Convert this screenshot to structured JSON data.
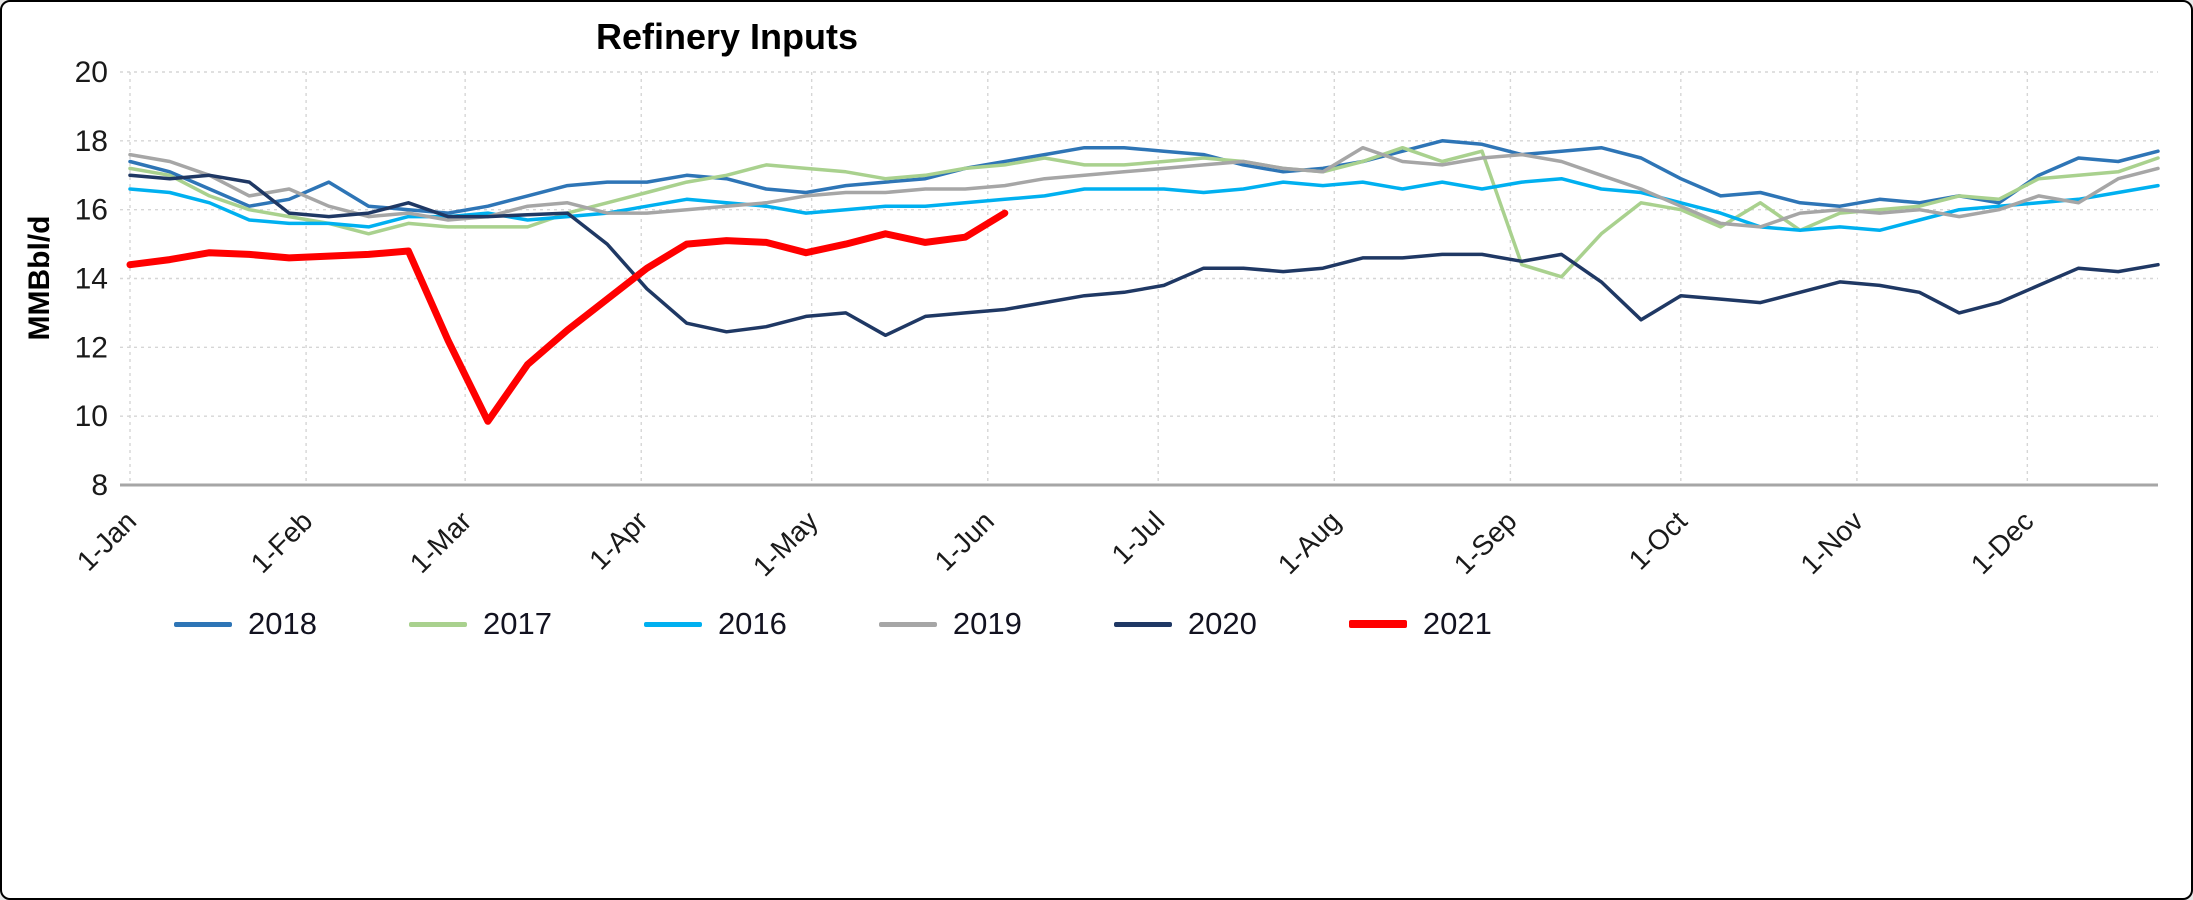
{
  "title": "Refinery Inputs",
  "chart_data": {
    "type": "line",
    "title": "Refinery Inputs",
    "xlabel": "",
    "ylabel": "MMBbl/d",
    "ylim": [
      8,
      20
    ],
    "ytick_step": 2,
    "grid": "dashed",
    "legend_position": "bottom",
    "x_unit": "weekly points, 7 days apart, starting 1-Jan",
    "x_domain_days": 357,
    "xticks": [
      {
        "label": "1-Jan",
        "day": 0
      },
      {
        "label": "1-Feb",
        "day": 31
      },
      {
        "label": "1-Mar",
        "day": 59
      },
      {
        "label": "1-Apr",
        "day": 90
      },
      {
        "label": "1-May",
        "day": 120
      },
      {
        "label": "1-Jun",
        "day": 151
      },
      {
        "label": "1-Jul",
        "day": 181
      },
      {
        "label": "1-Aug",
        "day": 212
      },
      {
        "label": "1-Sep",
        "day": 243
      },
      {
        "label": "1-Oct",
        "day": 273
      },
      {
        "label": "1-Nov",
        "day": 304
      },
      {
        "label": "1-Dec",
        "day": 334
      }
    ],
    "series": [
      {
        "name": "2018",
        "color": "#2E75B6",
        "width": 3.5,
        "values": [
          17.4,
          17.1,
          16.6,
          16.1,
          16.3,
          16.8,
          16.1,
          16.0,
          15.9,
          16.1,
          16.4,
          16.7,
          16.8,
          16.8,
          17.0,
          16.9,
          16.6,
          16.5,
          16.7,
          16.8,
          16.9,
          17.2,
          17.4,
          17.6,
          17.8,
          17.8,
          17.7,
          17.6,
          17.3,
          17.1,
          17.2,
          17.4,
          17.7,
          18.0,
          17.9,
          17.6,
          17.7,
          17.8,
          17.5,
          16.9,
          16.4,
          16.5,
          16.2,
          16.1,
          16.3,
          16.2,
          16.4,
          16.2,
          17.0,
          17.5,
          17.4,
          17.7
        ]
      },
      {
        "name": "2017",
        "color": "#A9D18E",
        "width": 3.5,
        "values": [
          17.2,
          17.0,
          16.4,
          16.0,
          15.8,
          15.6,
          15.3,
          15.6,
          15.5,
          15.5,
          15.5,
          15.9,
          16.2,
          16.5,
          16.8,
          17.0,
          17.3,
          17.2,
          17.1,
          16.9,
          17.0,
          17.2,
          17.3,
          17.5,
          17.3,
          17.3,
          17.4,
          17.5,
          17.4,
          17.2,
          17.1,
          17.4,
          17.8,
          17.4,
          17.7,
          14.4,
          14.05,
          15.3,
          16.2,
          16.0,
          15.5,
          16.2,
          15.4,
          15.9,
          16.0,
          16.1,
          16.4,
          16.3,
          16.9,
          17.0,
          17.1,
          17.5
        ]
      },
      {
        "name": "2016",
        "color": "#00B0F0",
        "width": 3.5,
        "values": [
          16.6,
          16.5,
          16.2,
          15.7,
          15.6,
          15.6,
          15.5,
          15.8,
          15.8,
          15.9,
          15.7,
          15.8,
          15.9,
          16.1,
          16.3,
          16.2,
          16.1,
          15.9,
          16.0,
          16.1,
          16.1,
          16.2,
          16.3,
          16.4,
          16.6,
          16.6,
          16.6,
          16.5,
          16.6,
          16.8,
          16.7,
          16.8,
          16.6,
          16.8,
          16.6,
          16.8,
          16.9,
          16.6,
          16.5,
          16.2,
          15.9,
          15.5,
          15.4,
          15.5,
          15.4,
          15.7,
          16.0,
          16.1,
          16.2,
          16.3,
          16.5,
          16.7
        ]
      },
      {
        "name": "2019",
        "color": "#A6A6A6",
        "width": 3.5,
        "values": [
          17.6,
          17.4,
          17.0,
          16.4,
          16.6,
          16.1,
          15.8,
          15.9,
          15.7,
          15.8,
          16.1,
          16.2,
          15.9,
          15.9,
          16.0,
          16.1,
          16.2,
          16.4,
          16.5,
          16.5,
          16.6,
          16.6,
          16.7,
          16.9,
          17.0,
          17.1,
          17.2,
          17.3,
          17.4,
          17.2,
          17.1,
          17.8,
          17.4,
          17.3,
          17.5,
          17.6,
          17.4,
          17.0,
          16.6,
          16.1,
          15.6,
          15.5,
          15.9,
          16.0,
          15.9,
          16.0,
          15.8,
          16.0,
          16.4,
          16.2,
          16.9,
          17.2
        ]
      },
      {
        "name": "2020",
        "color": "#1F3864",
        "width": 3.5,
        "values": [
          17.0,
          16.9,
          17.0,
          16.8,
          15.9,
          15.8,
          15.9,
          16.2,
          15.8,
          15.8,
          15.85,
          15.9,
          15.0,
          13.7,
          12.7,
          12.45,
          12.6,
          12.9,
          13.0,
          12.35,
          12.9,
          13.0,
          13.1,
          13.3,
          13.5,
          13.6,
          13.8,
          14.3,
          14.3,
          14.2,
          14.3,
          14.6,
          14.6,
          14.7,
          14.7,
          14.5,
          14.7,
          13.9,
          12.8,
          13.5,
          13.4,
          13.3,
          13.6,
          13.9,
          13.8,
          13.6,
          13.0,
          13.3,
          13.8,
          14.3,
          14.2,
          14.4
        ]
      },
      {
        "name": "2021",
        "color": "#FF0000",
        "width": 7,
        "values": [
          14.4,
          14.55,
          14.75,
          14.7,
          14.6,
          14.65,
          14.7,
          14.8,
          12.2,
          9.85,
          11.5,
          12.5,
          13.4,
          14.3,
          15.0,
          15.1,
          15.05,
          14.75,
          15.0,
          15.3,
          15.05,
          15.2,
          15.9
        ]
      }
    ]
  }
}
